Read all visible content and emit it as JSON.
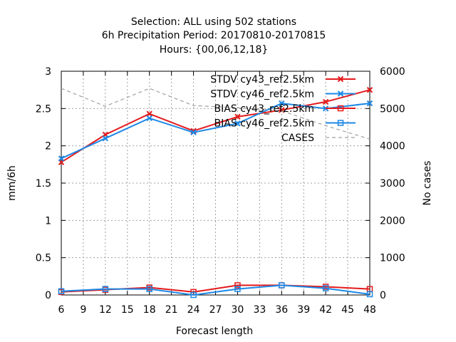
{
  "chart_data": {
    "type": "line",
    "title_lines": [
      "Selection: ALL using   502 stations",
      "6h Precipitation   Period: 20170810-20170815",
      "Hours: {00,06,12,18}"
    ],
    "xlabel": "Forecast length",
    "ylabel": "mm/6h",
    "y2label": "No cases",
    "x_ticks": [
      6,
      9,
      12,
      15,
      18,
      21,
      24,
      27,
      30,
      33,
      36,
      39,
      42,
      45,
      48
    ],
    "xlim": [
      6,
      48
    ],
    "ylim": [
      0,
      3
    ],
    "y_ticks": [
      "0",
      "0.5",
      "1",
      "1.5",
      "2",
      "2.5",
      "3"
    ],
    "y_tick_values": [
      0,
      0.5,
      1,
      1.5,
      2,
      2.5,
      3
    ],
    "y2lim": [
      0,
      6000
    ],
    "y2_ticks": [
      "0",
      "1000",
      "2000",
      "3000",
      "4000",
      "5000",
      "6000"
    ],
    "y2_tick_values": [
      0,
      1000,
      2000,
      3000,
      4000,
      5000,
      6000
    ],
    "grid": true,
    "legend_position": "top-right",
    "x": [
      6,
      12,
      18,
      24,
      30,
      36,
      42,
      48
    ],
    "series": [
      {
        "name": "STDV cy43_ref2.5km",
        "color": "#e41a1c",
        "marker": "x",
        "axis": "y1",
        "values": [
          1.78,
          2.15,
          2.43,
          2.2,
          2.39,
          2.48,
          2.59,
          2.75
        ]
      },
      {
        "name": "STDV cy46_ref2.5km",
        "color": "#1e88e5",
        "marker": "x",
        "axis": "y1",
        "values": [
          1.83,
          2.1,
          2.37,
          2.18,
          2.3,
          2.57,
          2.5,
          2.57
        ]
      },
      {
        "name": "BIAS cy43_ref2.5km",
        "color": "#e41a1c",
        "marker": "square",
        "axis": "y1",
        "values": [
          0.04,
          0.07,
          0.1,
          0.04,
          0.13,
          0.13,
          0.11,
          0.08
        ]
      },
      {
        "name": "BIAS cy46_ref2.5km",
        "color": "#1e88e5",
        "marker": "square",
        "axis": "y1",
        "values": [
          0.05,
          0.08,
          0.08,
          0.0,
          0.08,
          0.13,
          0.09,
          0.01
        ]
      },
      {
        "name": "CASES",
        "color": "#a0a0a0",
        "marker": "none",
        "dash": true,
        "axis": "y2",
        "values": [
          5540,
          5060,
          5540,
          5080,
          5020,
          4940,
          4540,
          4180
        ]
      }
    ]
  }
}
